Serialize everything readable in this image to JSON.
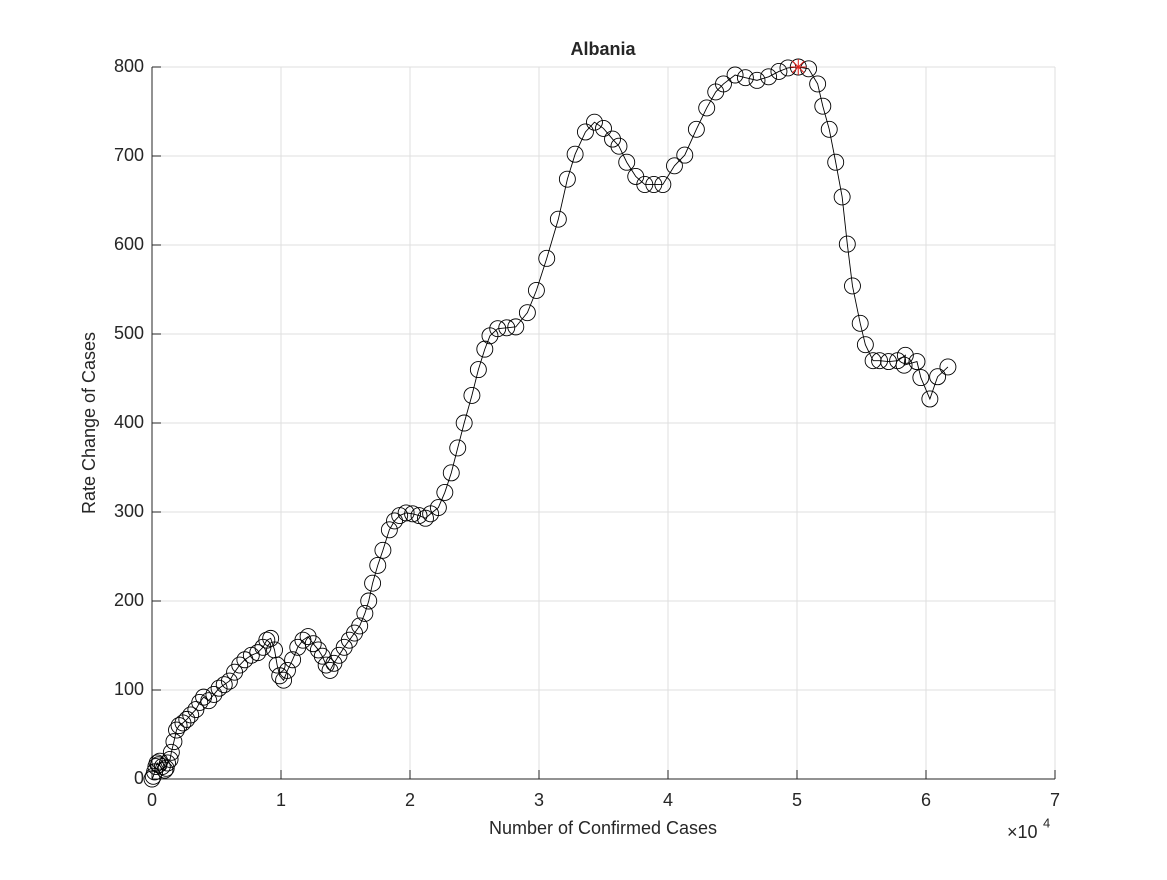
{
  "chart_data": {
    "type": "line",
    "title": "Albania",
    "xlabel": "Number of Confirmed Cases",
    "ylabel": "Rate Change of Cases",
    "x_exponent": {
      "base": "×10",
      "power": "4"
    },
    "xlim": [
      0,
      7
    ],
    "ylim": [
      0,
      800
    ],
    "xticks": [
      0,
      1,
      2,
      3,
      4,
      5,
      6,
      7
    ],
    "yticks": [
      0,
      100,
      200,
      300,
      400,
      500,
      600,
      700,
      800
    ],
    "grid": true,
    "series": [
      {
        "name": "Albania",
        "color": "#000000",
        "marker": "circle",
        "x": [
          0,
          0.01,
          0.02,
          0.03,
          0.04,
          0.05,
          0.06,
          0.08,
          0.1,
          0.11,
          0.12,
          0.14,
          0.15,
          0.17,
          0.19,
          0.21,
          0.24,
          0.27,
          0.3,
          0.34,
          0.37,
          0.4,
          0.44,
          0.48,
          0.52,
          0.56,
          0.6,
          0.64,
          0.68,
          0.72,
          0.77,
          0.82,
          0.86,
          0.89,
          0.92,
          0.95,
          0.97,
          0.99,
          1.02,
          1.05,
          1.09,
          1.13,
          1.17,
          1.21,
          1.25,
          1.29,
          1.32,
          1.35,
          1.38,
          1.41,
          1.45,
          1.49,
          1.53,
          1.57,
          1.61,
          1.65,
          1.68,
          1.71,
          1.75,
          1.79,
          1.84,
          1.88,
          1.92,
          1.97,
          2.02,
          2.07,
          2.12,
          2.16,
          2.22,
          2.27,
          2.32,
          2.37,
          2.42,
          2.48,
          2.53,
          2.58,
          2.62,
          2.68,
          2.75,
          2.82,
          2.91,
          2.98,
          3.06,
          3.15,
          3.22,
          3.28,
          3.36,
          3.43,
          3.5,
          3.57,
          3.62,
          3.68,
          3.75,
          3.82,
          3.89,
          3.96,
          4.05,
          4.13,
          4.22,
          4.3,
          4.37,
          4.43,
          4.52,
          4.6,
          4.69,
          4.78,
          4.86,
          4.93,
          5.01,
          5.09,
          5.16,
          5.2,
          5.25,
          5.3,
          5.35,
          5.39,
          5.43,
          5.49,
          5.53,
          5.59,
          5.64,
          5.71,
          5.78,
          5.84,
          5.83,
          5.93,
          5.96,
          6.03,
          6.09,
          6.17
        ],
        "values": [
          0,
          3,
          8,
          14,
          18,
          16,
          20,
          14,
          10,
          12,
          18,
          22,
          30,
          42,
          55,
          60,
          63,
          67,
          72,
          78,
          86,
          92,
          88,
          95,
          102,
          106,
          110,
          120,
          128,
          134,
          139,
          142,
          148,
          156,
          158,
          145,
          128,
          116,
          111,
          122,
          134,
          148,
          156,
          160,
          152,
          145,
          138,
          128,
          122,
          130,
          139,
          148,
          156,
          164,
          172,
          186,
          200,
          220,
          240,
          257,
          280,
          290,
          296,
          299,
          298,
          296,
          293,
          298,
          305,
          322,
          344,
          372,
          400,
          431,
          460,
          483,
          498,
          506,
          507,
          508,
          524,
          549,
          585,
          629,
          674,
          702,
          727,
          738,
          731,
          719,
          711,
          693,
          677,
          668,
          668,
          668,
          689,
          701,
          730,
          754,
          772,
          781,
          791,
          788,
          785,
          789,
          795,
          799,
          800,
          798,
          781,
          756,
          730,
          693,
          654,
          601,
          554,
          512,
          488,
          470,
          470,
          469,
          470,
          476,
          465,
          469,
          451,
          427,
          452,
          463
        ]
      }
    ],
    "peak_marker": {
      "x": 5.01,
      "y": 800,
      "color": "#e0201b"
    }
  }
}
